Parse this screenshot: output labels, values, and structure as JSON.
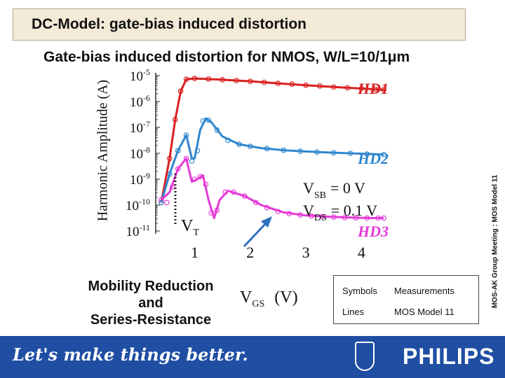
{
  "header": {
    "title": "DC-Model: gate-bias induced distortion"
  },
  "side_note": "MOS-AK Group Meeting : MOS Model 11",
  "footer": {
    "slogan": "Let's make things better.",
    "brand": "PHILIPS"
  },
  "legend": {
    "symbols_label": "Symbols",
    "symbols_value": "Measurements",
    "lines_label": "Lines",
    "lines_value": "MOS Model 11"
  },
  "annotations": {
    "mobility_line1": "Mobility Reduction",
    "mobility_line2": "and",
    "mobility_line3": "Series-Resistance",
    "vt": "V",
    "vt_sub": "T",
    "vsb": "V",
    "vsb_sub": "SB",
    "vsb_value": "= 0 V",
    "vds": "V",
    "vds_sub": "DS",
    "vds_value": "= 0.1 V"
  },
  "chart_data": {
    "type": "line",
    "title": "Gate-bias induced distortion for NMOS, W/L=10/1μm",
    "xlabel": "V",
    "xlabel_sub": "GS",
    "xlabel_unit": "(V)",
    "ylabel": "Harmonic Amplitude (A)",
    "y_scale": "log",
    "xlim": [
      0.3,
      4.5
    ],
    "ylim_exponent": [
      -11,
      -5
    ],
    "x_ticks": [
      "1",
      "2",
      "3",
      "4"
    ],
    "x_tick_values": [
      1,
      2,
      3,
      4
    ],
    "y_ticks": [
      {
        "base": "10",
        "exp": "-5"
      },
      {
        "base": "10",
        "exp": "-6"
      },
      {
        "base": "10",
        "exp": "-7"
      },
      {
        "base": "10",
        "exp": "-8"
      },
      {
        "base": "10",
        "exp": "-9"
      },
      {
        "base": "10",
        "exp": "-10"
      },
      {
        "base": "10",
        "exp": "-11"
      }
    ],
    "series": [
      {
        "name": "HD1",
        "color": "#d92020",
        "x": [
          0.4,
          0.55,
          0.65,
          0.75,
          0.85,
          1.0,
          1.5,
          2.0,
          2.5,
          3.0,
          3.5,
          4.0,
          4.4
        ],
        "log_y": [
          -9.9,
          -8.2,
          -6.7,
          -5.6,
          -5.14,
          -5.11,
          -5.16,
          -5.22,
          -5.3,
          -5.37,
          -5.44,
          -5.5,
          -5.55
        ]
      },
      {
        "name": "HD2",
        "color": "#2f86cf",
        "x": [
          0.4,
          0.55,
          0.7,
          0.85,
          0.95,
          1.0,
          1.1,
          1.2,
          1.3,
          1.5,
          1.8,
          2.2,
          2.6,
          3.0,
          3.4,
          3.8,
          4.2,
          4.4
        ],
        "log_y": [
          -9.9,
          -8.8,
          -7.9,
          -7.3,
          -8.2,
          -8.2,
          -7.1,
          -6.65,
          -6.8,
          -7.35,
          -7.65,
          -7.8,
          -7.88,
          -7.93,
          -7.97,
          -8.0,
          -8.03,
          -8.05
        ]
      },
      {
        "name": "HD3",
        "color": "#e43ad8",
        "x": [
          0.4,
          0.55,
          0.7,
          0.85,
          0.95,
          1.05,
          1.15,
          1.25,
          1.35,
          1.45,
          1.6,
          1.9,
          2.2,
          2.6,
          3.0,
          3.4,
          3.8,
          4.2,
          4.4
        ],
        "log_y": [
          -9.8,
          -9.5,
          -8.6,
          -8.2,
          -9.1,
          -9.0,
          -8.85,
          -9.8,
          -10.5,
          -9.8,
          -9.45,
          -9.65,
          -10.0,
          -10.28,
          -10.4,
          -10.45,
          -10.48,
          -10.5,
          -10.5
        ]
      }
    ],
    "measurement_series": [
      {
        "name": "HD1",
        "color": "#d92020",
        "x": [
          0.4,
          0.55,
          0.65,
          0.75,
          0.85,
          1.0,
          1.25,
          1.5,
          1.75,
          2.0,
          2.25,
          2.5,
          2.75,
          3.0,
          3.25,
          3.5,
          3.75,
          4.0,
          4.25,
          4.4
        ],
        "log_y": [
          -9.9,
          -8.2,
          -6.7,
          -5.6,
          -5.14,
          -5.11,
          -5.13,
          -5.16,
          -5.19,
          -5.22,
          -5.26,
          -5.3,
          -5.33,
          -5.37,
          -5.4,
          -5.44,
          -5.47,
          -5.5,
          -5.53,
          -5.55
        ]
      },
      {
        "name": "HD2",
        "color": "#2f86cf",
        "x": [
          0.4,
          0.55,
          0.7,
          0.85,
          0.95,
          1.05,
          1.15,
          1.25,
          1.4,
          1.6,
          1.8,
          2.0,
          2.3,
          2.6,
          2.9,
          3.2,
          3.5,
          3.8,
          4.1,
          4.4
        ],
        "log_y": [
          -9.9,
          -8.8,
          -7.9,
          -7.3,
          -8.3,
          -7.9,
          -6.75,
          -6.72,
          -7.1,
          -7.5,
          -7.65,
          -7.73,
          -7.82,
          -7.88,
          -7.92,
          -7.95,
          -7.98,
          -8.0,
          -8.03,
          -8.05
        ]
      },
      {
        "name": "HD3",
        "color": "#e43ad8",
        "x": [
          0.4,
          0.5,
          0.6,
          0.7,
          0.85,
          1.0,
          1.1,
          1.2,
          1.3,
          1.4,
          1.55,
          1.7,
          1.9,
          2.1,
          2.3,
          2.5,
          2.7,
          2.9,
          3.1,
          3.3,
          3.5,
          3.7,
          3.9,
          4.1,
          4.3,
          4.4
        ],
        "log_y": [
          -9.8,
          -9.9,
          -9.3,
          -8.6,
          -8.2,
          -9.0,
          -8.9,
          -9.2,
          -10.3,
          -10.2,
          -9.5,
          -9.5,
          -9.65,
          -9.9,
          -10.1,
          -10.25,
          -10.33,
          -10.38,
          -10.42,
          -10.44,
          -10.46,
          -10.48,
          -10.49,
          -10.5,
          -10.5,
          -10.5
        ]
      }
    ]
  }
}
